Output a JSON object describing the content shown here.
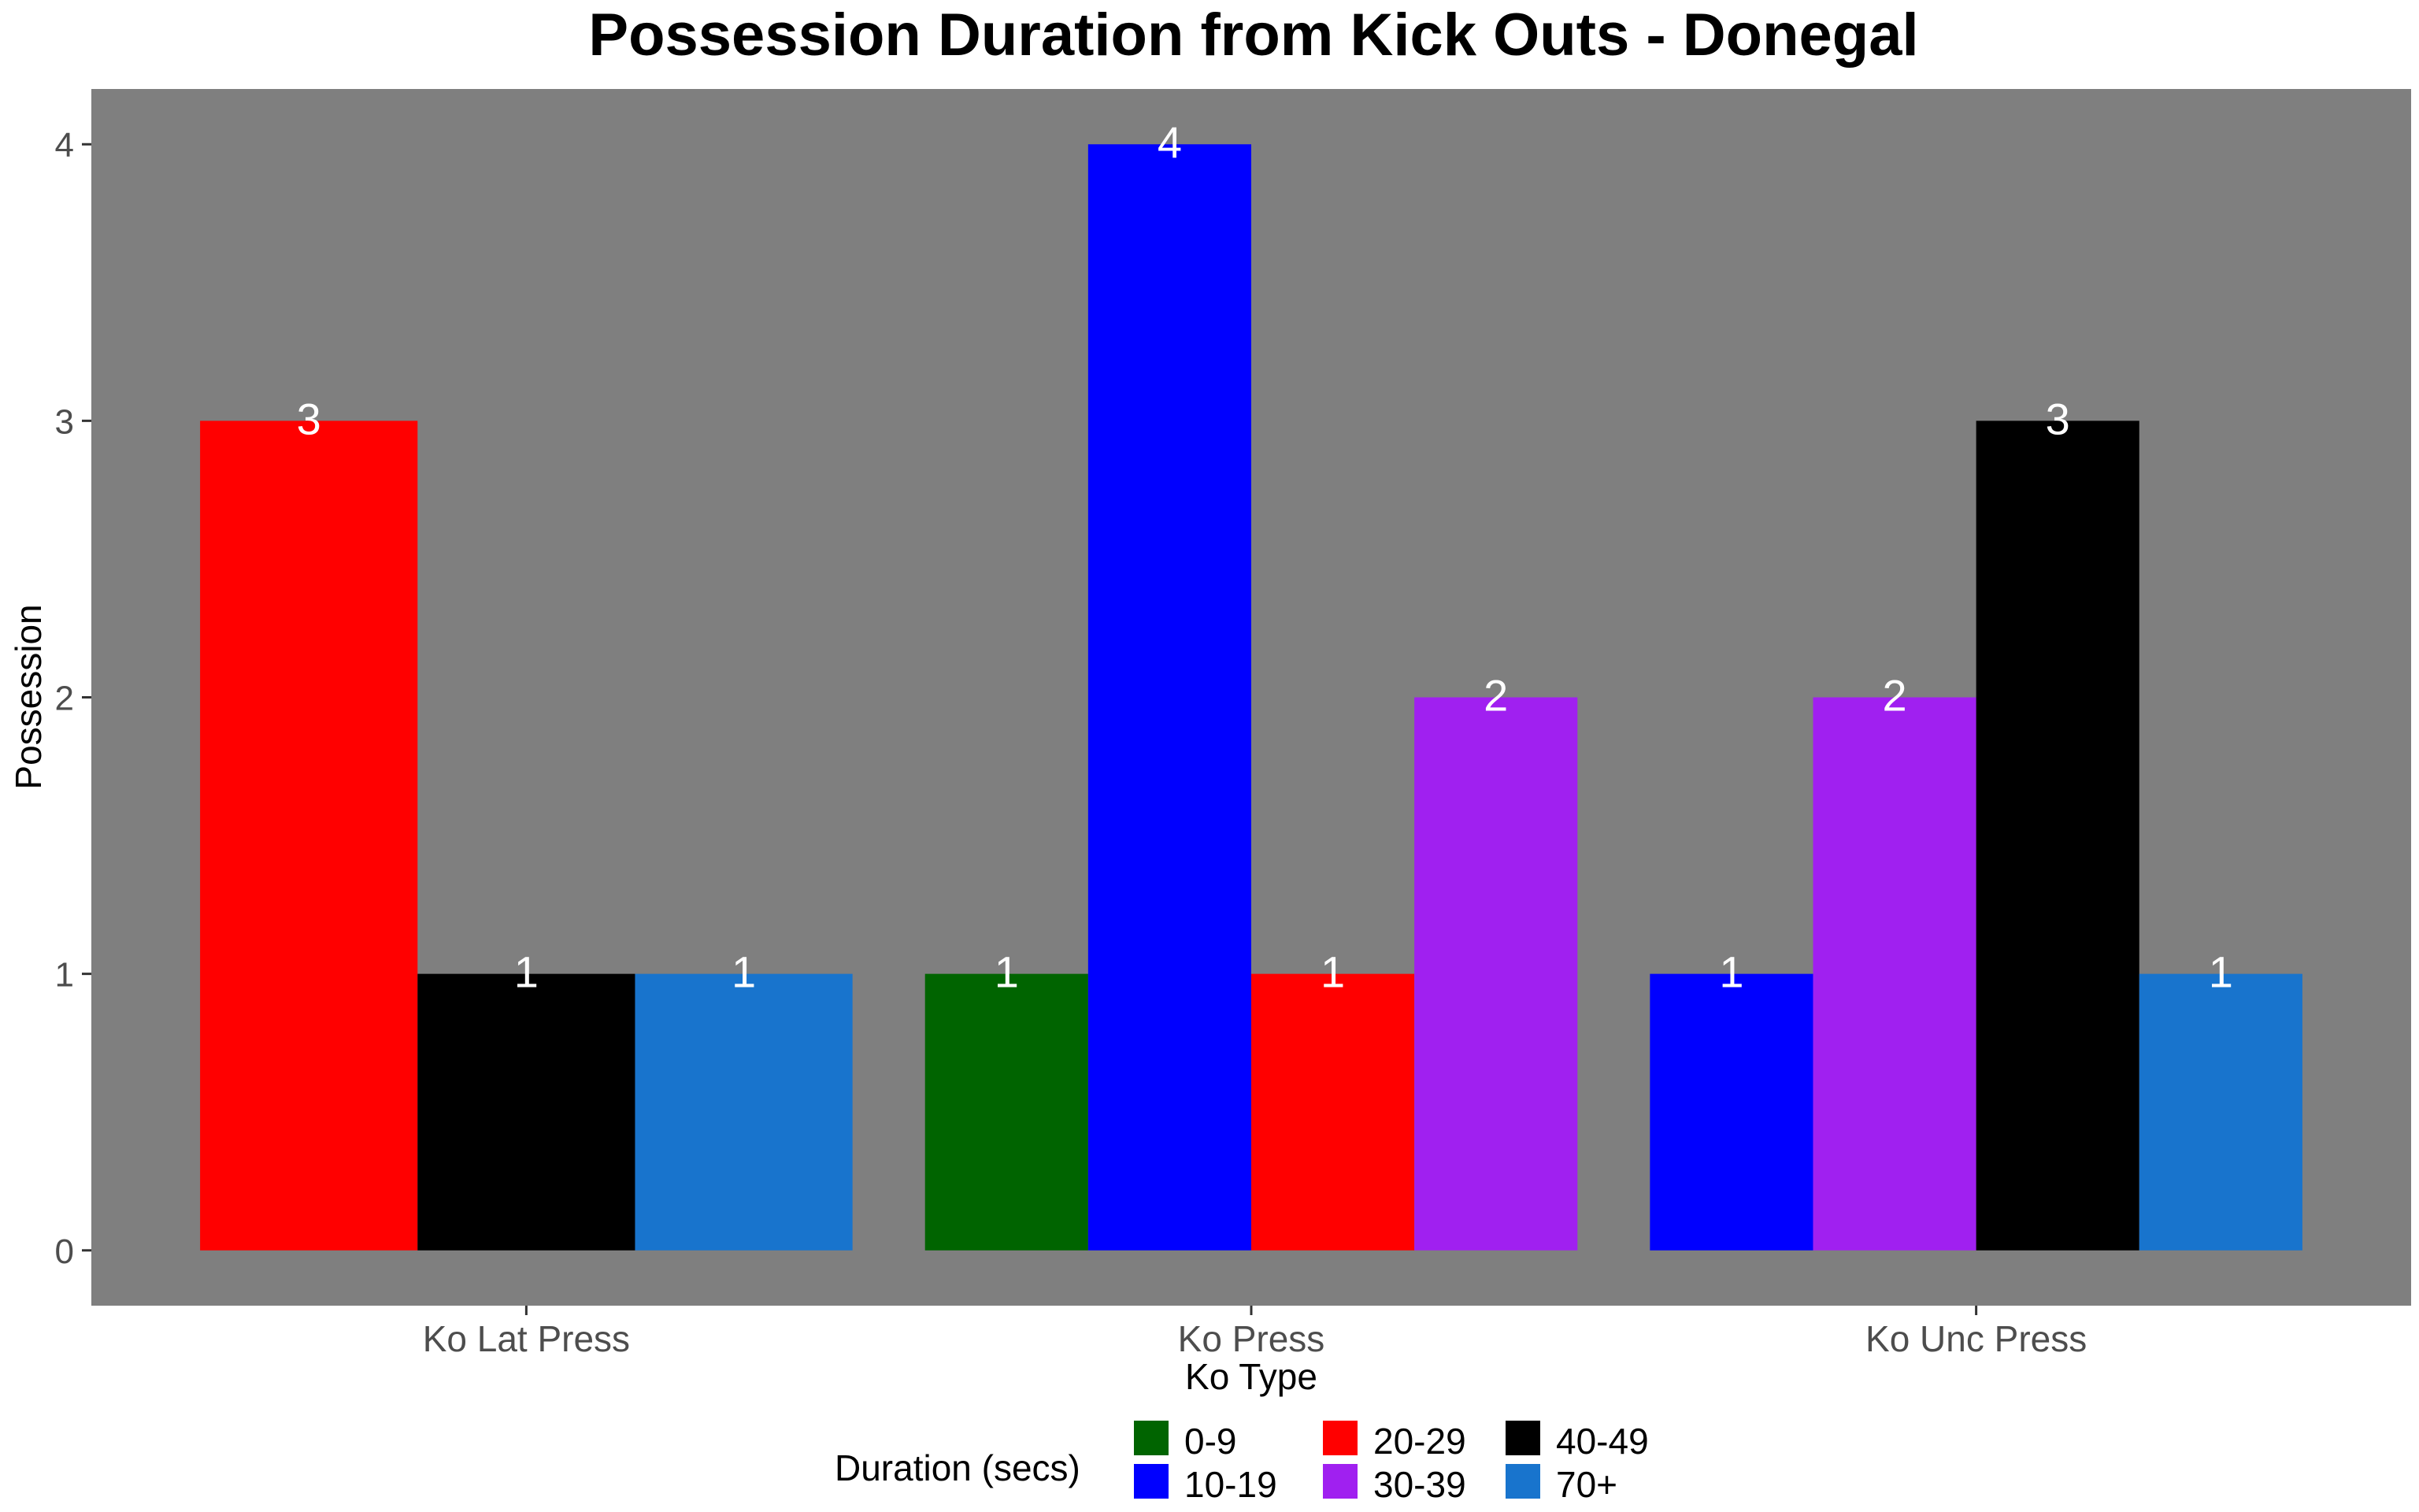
{
  "chart_data": {
    "type": "bar",
    "title": "Possession Duration from Kick Outs - Donegal",
    "xlabel": "Ko Type",
    "ylabel": "Possession",
    "ylim": [
      -0.2,
      4.2
    ],
    "yticks": [
      0,
      1,
      2,
      3,
      4
    ],
    "grid": false,
    "categories": [
      "Ko Lat Press",
      "Ko Press",
      "Ko Unc Press"
    ],
    "series": [
      {
        "name": "0-9",
        "color": "#006400",
        "values": [
          null,
          1,
          null
        ]
      },
      {
        "name": "10-19",
        "color": "#0000FF",
        "values": [
          null,
          4,
          1
        ]
      },
      {
        "name": "20-29",
        "color": "#FF0000",
        "values": [
          3,
          1,
          null
        ]
      },
      {
        "name": "30-39",
        "color": "#A020F0",
        "values": [
          null,
          2,
          2
        ]
      },
      {
        "name": "40-49",
        "color": "#000000",
        "values": [
          1,
          null,
          3
        ]
      },
      {
        "name": "70+",
        "color": "#1874CD",
        "values": [
          1,
          null,
          1
        ]
      }
    ],
    "legend": {
      "title": "Duration (secs)",
      "position": "bottom"
    },
    "panel_background": "#7F7F7F"
  }
}
